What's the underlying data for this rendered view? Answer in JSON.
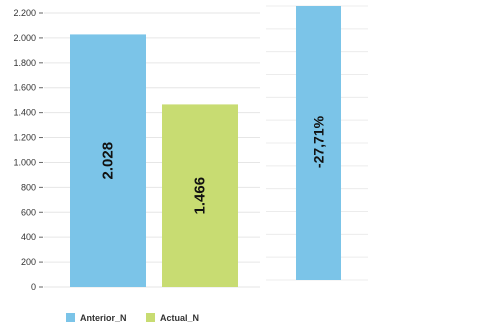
{
  "chart_data": [
    {
      "type": "bar",
      "categories": [
        "Anterior_N",
        "Actual_N"
      ],
      "values": [
        2028,
        1466
      ],
      "data_labels": [
        "2.028",
        "1.466"
      ],
      "ylim": [
        0,
        2200
      ],
      "yticks": [
        0,
        200,
        400,
        600,
        800,
        1000,
        1200,
        1400,
        1600,
        1800,
        2000,
        2200
      ],
      "ytick_labels": [
        "0",
        "200",
        "400",
        "600",
        "800",
        "1.000",
        "1.200",
        "1.400",
        "1.600",
        "1.800",
        "2.000",
        "2.200"
      ],
      "grid": true,
      "legend": "bottom-left",
      "series": [
        {
          "name": "Anterior_N",
          "color": "#7bc4e8"
        },
        {
          "name": "Actual_N",
          "color": "#c8dc72"
        }
      ]
    },
    {
      "type": "bar",
      "values": [
        -27.71
      ],
      "data_labels": [
        "-27,71%"
      ],
      "grid": true,
      "color": "#7bc4e8"
    }
  ]
}
